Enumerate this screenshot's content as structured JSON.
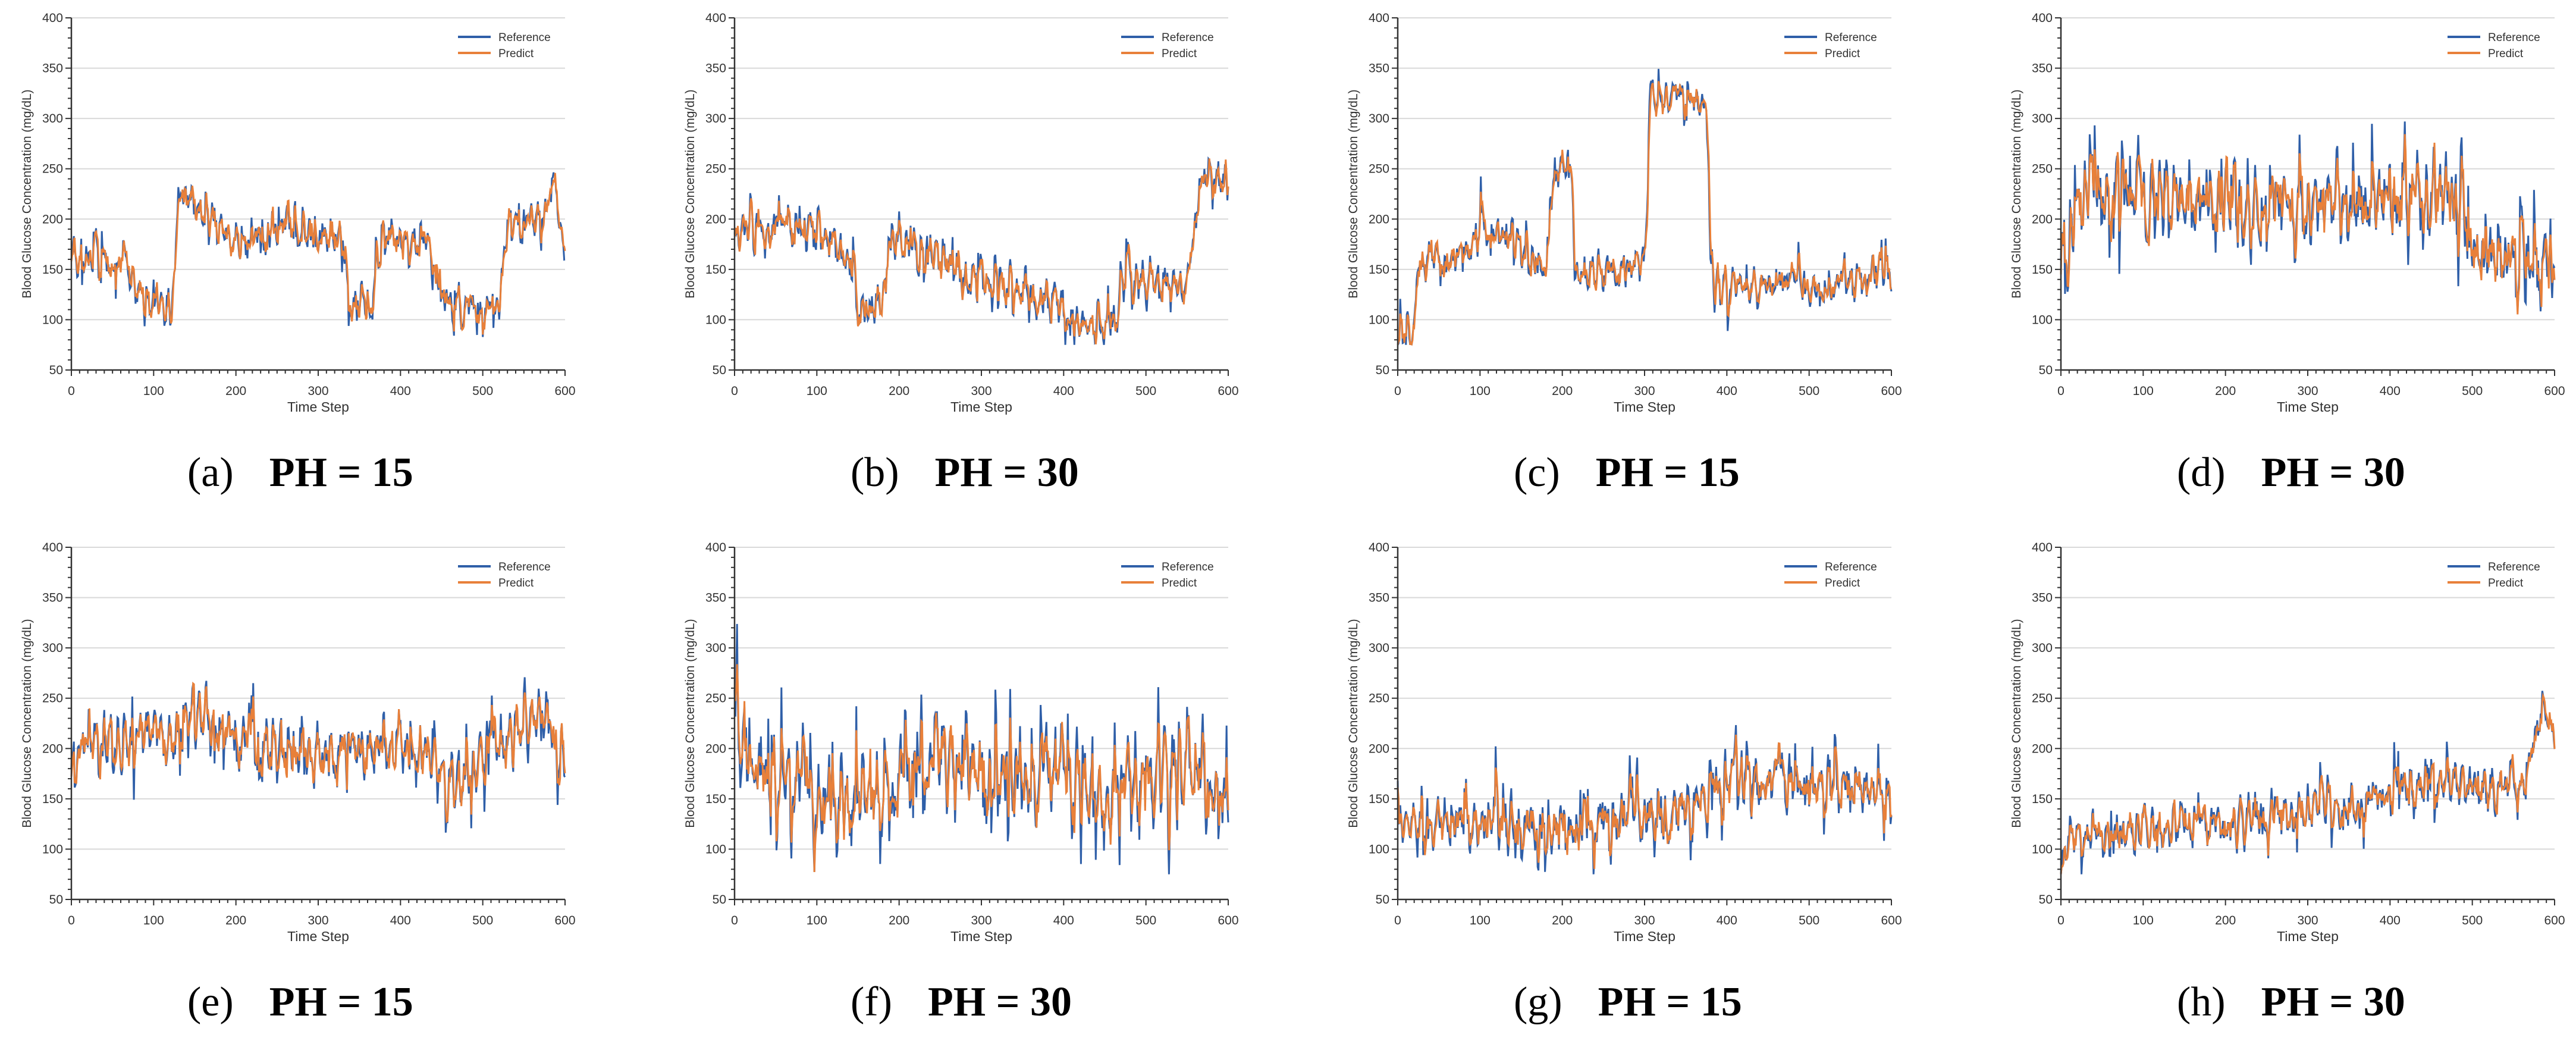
{
  "figure": {
    "series_colors": {
      "Reference": "#2f5fa8",
      "Predict": "#e8803a"
    },
    "axis_color": "#333333",
    "grid_color": "#d9d9d9"
  },
  "chart_data": [
    {
      "id": "a",
      "type": "line",
      "caption_letter": "(a)",
      "caption_ph": "PH = 15",
      "xlabel": "Time Step",
      "ylabel": "Blood Glucose Concentration (mg/dL)",
      "xlim": [
        0,
        600
      ],
      "ylim": [
        50,
        400
      ],
      "xticks": [
        0,
        100,
        200,
        300,
        400,
        500,
        600
      ],
      "yticks": [
        50,
        100,
        150,
        200,
        250,
        300,
        350,
        400
      ],
      "legend": [
        "Reference",
        "Predict"
      ],
      "legend_position": "top-right",
      "grid": "horizontal",
      "n_points": 601,
      "profile": [
        [
          0,
          175
        ],
        [
          30,
          155
        ],
        [
          60,
          150
        ],
        [
          90,
          120
        ],
        [
          120,
          110
        ],
        [
          130,
          225
        ],
        [
          160,
          210
        ],
        [
          190,
          180
        ],
        [
          220,
          175
        ],
        [
          260,
          195
        ],
        [
          300,
          180
        ],
        [
          320,
          190
        ],
        [
          340,
          120
        ],
        [
          360,
          115
        ],
        [
          380,
          185
        ],
        [
          400,
          180
        ],
        [
          430,
          170
        ],
        [
          460,
          115
        ],
        [
          500,
          110
        ],
        [
          520,
          115
        ],
        [
          530,
          205
        ],
        [
          560,
          200
        ],
        [
          590,
          220
        ],
        [
          600,
          140
        ]
      ],
      "noise_amp": 22,
      "spike_prob": 0.05,
      "seed": 11
    },
    {
      "id": "b",
      "type": "line",
      "caption_letter": "(b)",
      "caption_ph": "PH = 30",
      "xlabel": "Time Step",
      "ylabel": "Blood Glucose Concentration (mg/dL)",
      "xlim": [
        0,
        600
      ],
      "ylim": [
        50,
        400
      ],
      "xticks": [
        0,
        100,
        200,
        300,
        400,
        500,
        600
      ],
      "yticks": [
        50,
        100,
        150,
        200,
        250,
        300,
        350,
        400
      ],
      "legend": [
        "Reference",
        "Predict"
      ],
      "legend_position": "top-right",
      "grid": "horizontal",
      "n_points": 601,
      "profile": [
        [
          0,
          190
        ],
        [
          50,
          195
        ],
        [
          100,
          185
        ],
        [
          140,
          160
        ],
        [
          150,
          110
        ],
        [
          180,
          115
        ],
        [
          190,
          180
        ],
        [
          230,
          170
        ],
        [
          260,
          150
        ],
        [
          300,
          140
        ],
        [
          340,
          130
        ],
        [
          380,
          115
        ],
        [
          420,
          100
        ],
        [
          460,
          95
        ],
        [
          470,
          135
        ],
        [
          520,
          140
        ],
        [
          550,
          135
        ],
        [
          565,
          240
        ],
        [
          590,
          250
        ],
        [
          600,
          235
        ]
      ],
      "noise_amp": 22,
      "spike_prob": 0.04,
      "seed": 23
    },
    {
      "id": "c",
      "type": "line",
      "caption_letter": "(c)",
      "caption_ph": "PH = 15",
      "xlabel": "Time Step",
      "ylabel": "Blood Glucose Concentration (mg/dL)",
      "xlim": [
        0,
        600
      ],
      "ylim": [
        50,
        400
      ],
      "xticks": [
        0,
        100,
        200,
        300,
        400,
        500,
        600
      ],
      "yticks": [
        50,
        100,
        150,
        200,
        250,
        300,
        350,
        400
      ],
      "legend": [
        "Reference",
        "Predict"
      ],
      "legend_position": "top-right",
      "grid": "horizontal",
      "n_points": 601,
      "profile": [
        [
          0,
          95
        ],
        [
          18,
          85
        ],
        [
          25,
          160
        ],
        [
          80,
          160
        ],
        [
          100,
          190
        ],
        [
          150,
          175
        ],
        [
          180,
          150
        ],
        [
          190,
          255
        ],
        [
          210,
          250
        ],
        [
          215,
          150
        ],
        [
          270,
          150
        ],
        [
          300,
          160
        ],
        [
          305,
          325
        ],
        [
          360,
          320
        ],
        [
          375,
          310
        ],
        [
          380,
          130
        ],
        [
          430,
          135
        ],
        [
          470,
          140
        ],
        [
          520,
          130
        ],
        [
          560,
          140
        ],
        [
          600,
          150
        ]
      ],
      "noise_amp": 20,
      "spike_prob": 0.05,
      "seed": 37
    },
    {
      "id": "d",
      "type": "line",
      "caption_letter": "(d)",
      "caption_ph": "PH = 30",
      "xlabel": "Time Step",
      "ylabel": "Blood Glucose Concentration (mg/dL)",
      "xlim": [
        0,
        600
      ],
      "ylim": [
        50,
        400
      ],
      "xticks": [
        0,
        100,
        200,
        300,
        400,
        500,
        600
      ],
      "yticks": [
        50,
        100,
        150,
        200,
        250,
        300,
        350,
        400
      ],
      "legend": [
        "Reference",
        "Predict"
      ],
      "legend_position": "top-right",
      "grid": "horizontal",
      "n_points": 601,
      "profile": [
        [
          0,
          150
        ],
        [
          20,
          225
        ],
        [
          100,
          225
        ],
        [
          200,
          215
        ],
        [
          300,
          210
        ],
        [
          400,
          220
        ],
        [
          470,
          230
        ],
        [
          500,
          160
        ],
        [
          540,
          155
        ],
        [
          600,
          170
        ]
      ],
      "noise_amp": 40,
      "spike_prob": 0.06,
      "seed": 41
    },
    {
      "id": "e",
      "type": "line",
      "caption_letter": "(e)",
      "caption_ph": "PH = 15",
      "xlabel": "Time Step",
      "ylabel": "Blood Glucose Concentration (mg/dL)",
      "xlim": [
        0,
        600
      ],
      "ylim": [
        50,
        400
      ],
      "xticks": [
        0,
        100,
        200,
        300,
        400,
        500,
        600
      ],
      "yticks": [
        50,
        100,
        150,
        200,
        250,
        300,
        350,
        400
      ],
      "legend": [
        "Reference",
        "Predict"
      ],
      "legend_position": "top-right",
      "grid": "horizontal",
      "n_points": 601,
      "profile": [
        [
          0,
          200
        ],
        [
          100,
          215
        ],
        [
          160,
          230
        ],
        [
          200,
          210
        ],
        [
          300,
          195
        ],
        [
          380,
          205
        ],
        [
          420,
          190
        ],
        [
          470,
          175
        ],
        [
          520,
          210
        ],
        [
          570,
          230
        ],
        [
          600,
          180
        ]
      ],
      "noise_amp": 32,
      "spike_prob": 0.06,
      "seed": 53
    },
    {
      "id": "f",
      "type": "line",
      "caption_letter": "(f)",
      "caption_ph": "PH = 30",
      "xlabel": "Time Step",
      "ylabel": "Blood Glucose Concentration (mg/dL)",
      "xlim": [
        0,
        600
      ],
      "ylim": [
        50,
        400
      ],
      "xticks": [
        0,
        100,
        200,
        300,
        400,
        500,
        600
      ],
      "yticks": [
        50,
        100,
        150,
        200,
        250,
        300,
        350,
        400
      ],
      "legend": [
        "Reference",
        "Predict"
      ],
      "legend_position": "top-right",
      "grid": "horizontal",
      "n_points": 601,
      "profile": [
        [
          0,
          220
        ],
        [
          20,
          170
        ],
        [
          80,
          165
        ],
        [
          120,
          140
        ],
        [
          200,
          175
        ],
        [
          250,
          190
        ],
        [
          300,
          175
        ],
        [
          350,
          165
        ],
        [
          400,
          175
        ],
        [
          450,
          160
        ],
        [
          500,
          170
        ],
        [
          550,
          180
        ],
        [
          600,
          150
        ]
      ],
      "noise_amp": 45,
      "spike_prob": 0.07,
      "seed": 67
    },
    {
      "id": "g",
      "type": "line",
      "caption_letter": "(g)",
      "caption_ph": "PH = 15",
      "xlabel": "Time Step",
      "ylabel": "Blood Glucose Concentration (mg/dL)",
      "xlim": [
        0,
        600
      ],
      "ylim": [
        50,
        400
      ],
      "xticks": [
        0,
        100,
        200,
        300,
        400,
        500,
        600
      ],
      "yticks": [
        50,
        100,
        150,
        200,
        250,
        300,
        350,
        400
      ],
      "legend": [
        "Reference",
        "Predict"
      ],
      "legend_position": "top-right",
      "grid": "horizontal",
      "n_points": 601,
      "profile": [
        [
          0,
          130
        ],
        [
          100,
          125
        ],
        [
          200,
          120
        ],
        [
          300,
          135
        ],
        [
          350,
          140
        ],
        [
          400,
          175
        ],
        [
          450,
          170
        ],
        [
          500,
          165
        ],
        [
          560,
          160
        ],
        [
          600,
          150
        ]
      ],
      "noise_amp": 28,
      "spike_prob": 0.07,
      "seed": 79
    },
    {
      "id": "h",
      "type": "line",
      "caption_letter": "(h)",
      "caption_ph": "PH = 30",
      "xlabel": "Time Step",
      "ylabel": "Blood Glucose Concentration (mg/dL)",
      "xlim": [
        0,
        600
      ],
      "ylim": [
        50,
        400
      ],
      "xticks": [
        0,
        100,
        200,
        300,
        400,
        500,
        600
      ],
      "yticks": [
        50,
        100,
        150,
        200,
        250,
        300,
        350,
        400
      ],
      "legend": [
        "Reference",
        "Predict"
      ],
      "legend_position": "top-right",
      "grid": "horizontal",
      "n_points": 601,
      "profile": [
        [
          0,
          105
        ],
        [
          100,
          120
        ],
        [
          200,
          125
        ],
        [
          300,
          140
        ],
        [
          400,
          160
        ],
        [
          500,
          165
        ],
        [
          560,
          160
        ],
        [
          585,
          240
        ],
        [
          600,
          215
        ]
      ],
      "noise_amp": 22,
      "spike_prob": 0.05,
      "seed": 97
    }
  ]
}
